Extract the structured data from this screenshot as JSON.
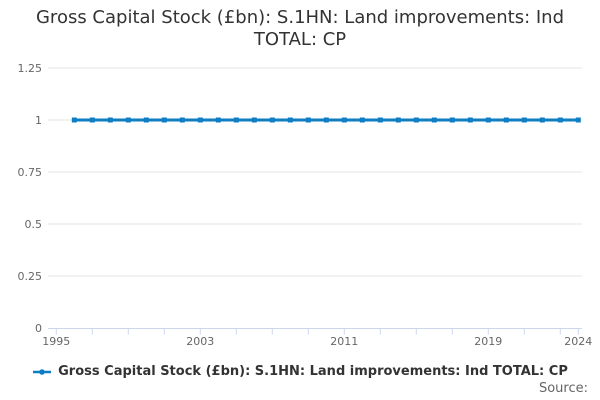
{
  "chart_data": {
    "type": "line",
    "title": "Gross Capital Stock (£bn): S.1HN: Land improvements: Ind TOTAL: CP",
    "xlabel": "",
    "ylabel": "",
    "series": [
      {
        "name": "Gross Capital Stock (£bn): S.1HN: Land improvements: Ind TOTAL: CP",
        "x": [
          1996,
          1997,
          1998,
          1999,
          2000,
          2001,
          2002,
          2003,
          2004,
          2005,
          2006,
          2007,
          2008,
          2009,
          2010,
          2011,
          2012,
          2013,
          2014,
          2015,
          2016,
          2017,
          2018,
          2019,
          2020,
          2021,
          2022,
          2023,
          2024
        ],
        "values": [
          1,
          1,
          1,
          1,
          1,
          1,
          1,
          1,
          1,
          1,
          1,
          1,
          1,
          1,
          1,
          1,
          1,
          1,
          1,
          1,
          1,
          1,
          1,
          1,
          1,
          1,
          1,
          1,
          1
        ]
      }
    ],
    "xlim": [
      1995,
      2024
    ],
    "ylim": [
      0,
      1.25
    ],
    "yticks": [
      {
        "v": 0,
        "label": "0"
      },
      {
        "v": 0.25,
        "label": "0.25"
      },
      {
        "v": 0.5,
        "label": "0.5"
      },
      {
        "v": 0.75,
        "label": "0.75"
      },
      {
        "v": 1,
        "label": "1"
      },
      {
        "v": 1.25,
        "label": "1.25"
      }
    ],
    "xticks": [
      1995,
      1997,
      1999,
      2001,
      2003,
      2005,
      2007,
      2009,
      2011,
      2013,
      2015,
      2017,
      2019,
      2021,
      2023,
      2024
    ],
    "xtick_labels": [
      1995,
      2003,
      2011,
      2019,
      2024
    ],
    "grid": true,
    "legend_position": "bottom-center",
    "source_label": "Source:",
    "colors": {
      "series": "#0f7ec3",
      "grid": "#e6e6e6",
      "axis_line": "#ccd6eb",
      "tick_label": "#666666",
      "title": "#333333"
    }
  }
}
